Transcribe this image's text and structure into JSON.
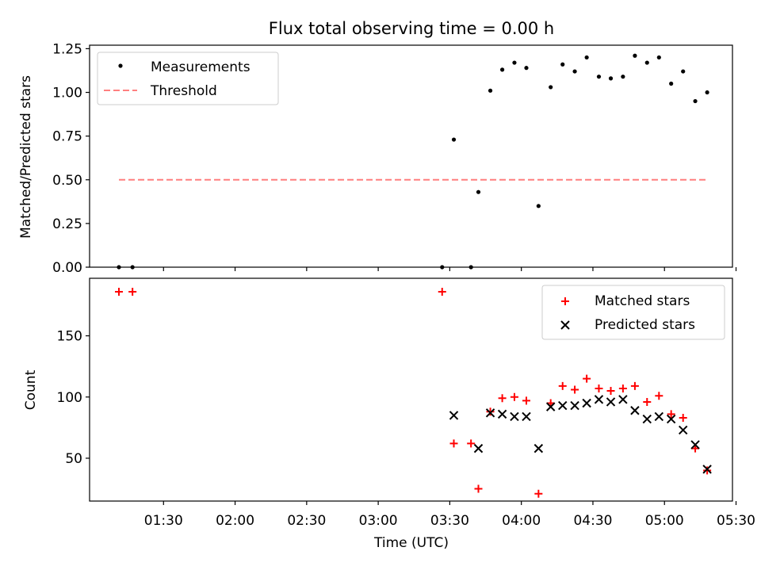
{
  "colors": {
    "matched": "#ff0000",
    "predicted": "#000000",
    "threshold": "#ff7f7f",
    "measurements": "#000000"
  },
  "chart_data": {
    "title": "Flux total observing time = 0.00 h",
    "xlabel": "Time (UTC)",
    "x_ticks": [
      "01:30",
      "02:00",
      "02:30",
      "03:00",
      "03:30",
      "04:00",
      "04:30",
      "05:00",
      "05:30"
    ],
    "x_tick_minutes": [
      90,
      120,
      150,
      180,
      210,
      240,
      270,
      300,
      330
    ],
    "xlim_minutes": [
      59,
      328.5
    ],
    "panels": [
      {
        "type": "scatter",
        "ylabel": "Matched/Predicted stars",
        "ylim": [
          0,
          1.27
        ],
        "y_ticks": [
          "0.00",
          "0.25",
          "0.50",
          "0.75",
          "1.00",
          "1.25"
        ],
        "y_tick_values": [
          0,
          0.25,
          0.5,
          0.75,
          1.0,
          1.25
        ],
        "legend_position": "top-left",
        "series": [
          {
            "name": "Measurements",
            "marker": "dot",
            "points": [
              [
                71.3,
                0
              ],
              [
                77,
                0
              ],
              [
                206.8,
                0
              ],
              [
                218.9,
                0
              ],
              [
                211.7,
                0.73
              ],
              [
                222,
                0.43
              ],
              [
                227,
                1.01
              ],
              [
                232,
                1.13
              ],
              [
                237.1,
                1.17
              ],
              [
                242.1,
                1.14
              ],
              [
                247.2,
                0.35
              ],
              [
                252.3,
                1.03
              ],
              [
                257.3,
                1.16
              ],
              [
                262.4,
                1.12
              ],
              [
                267.4,
                1.2
              ],
              [
                272.5,
                1.09
              ],
              [
                277.5,
                1.08
              ],
              [
                282.6,
                1.09
              ],
              [
                287.6,
                1.21
              ],
              [
                292.7,
                1.17
              ],
              [
                297.7,
                1.2
              ],
              [
                302.8,
                1.05
              ],
              [
                307.8,
                1.12
              ],
              [
                312.9,
                0.95
              ],
              [
                317.9,
                1.0
              ]
            ]
          },
          {
            "name": "Threshold",
            "line": "dashed",
            "points": [
              [
                71.3,
                0.5
              ],
              [
                317.9,
                0.5
              ]
            ]
          }
        ]
      },
      {
        "type": "scatter",
        "ylabel": "Count",
        "ylim": [
          15,
          197
        ],
        "y_ticks": [
          "50",
          "100",
          "150"
        ],
        "y_tick_values": [
          50,
          100,
          150
        ],
        "legend_position": "top-right",
        "series": [
          {
            "name": "Matched stars",
            "marker": "plus",
            "points": [
              [
                71.3,
                186
              ],
              [
                77,
                186
              ],
              [
                206.8,
                186
              ],
              [
                211.7,
                62
              ],
              [
                218.9,
                62
              ],
              [
                222,
                25
              ],
              [
                227,
                88
              ],
              [
                232,
                99
              ],
              [
                237.1,
                100
              ],
              [
                242.1,
                97
              ],
              [
                247.2,
                21
              ],
              [
                252.3,
                95
              ],
              [
                257.3,
                109
              ],
              [
                262.4,
                106
              ],
              [
                267.4,
                115
              ],
              [
                272.5,
                107
              ],
              [
                277.5,
                105
              ],
              [
                282.6,
                107
              ],
              [
                287.6,
                109
              ],
              [
                292.7,
                96
              ],
              [
                297.7,
                101
              ],
              [
                302.8,
                86
              ],
              [
                307.8,
                83
              ],
              [
                312.9,
                58
              ],
              [
                317.9,
                40
              ]
            ]
          },
          {
            "name": "Predicted stars",
            "marker": "x",
            "points": [
              [
                211.7,
                85
              ],
              [
                222,
                58
              ],
              [
                227,
                87
              ],
              [
                232,
                86
              ],
              [
                237.1,
                84
              ],
              [
                242.1,
                84
              ],
              [
                247.2,
                58
              ],
              [
                252.3,
                92
              ],
              [
                257.3,
                93
              ],
              [
                262.4,
                93
              ],
              [
                267.4,
                95
              ],
              [
                272.5,
                98
              ],
              [
                277.5,
                96
              ],
              [
                282.6,
                98
              ],
              [
                287.6,
                89
              ],
              [
                292.7,
                82
              ],
              [
                297.7,
                84
              ],
              [
                302.8,
                82
              ],
              [
                307.8,
                73
              ],
              [
                312.9,
                61
              ],
              [
                317.9,
                41
              ]
            ]
          }
        ]
      }
    ]
  }
}
